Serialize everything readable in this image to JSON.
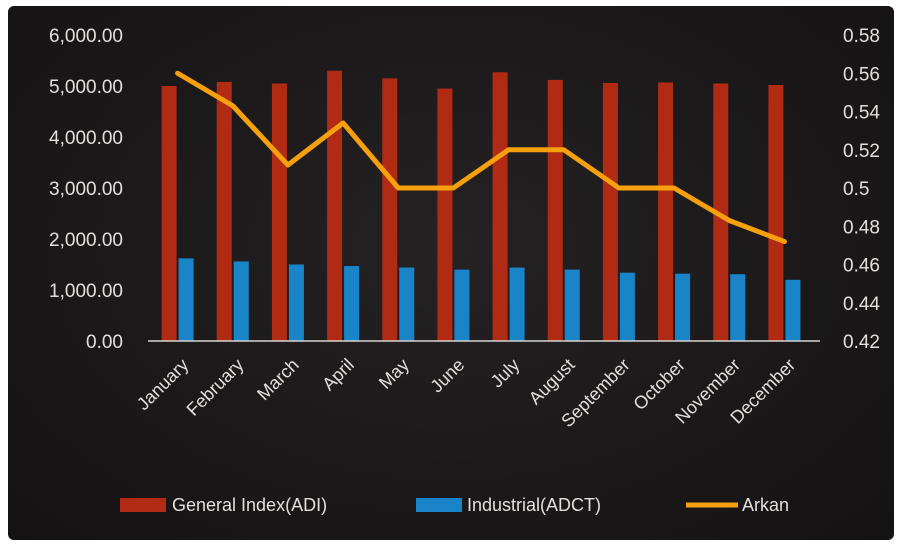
{
  "chart_data": {
    "type": "bar",
    "categories": [
      "January",
      "February",
      "March",
      "April",
      "May",
      "June",
      "July",
      "August",
      "September",
      "October",
      "November",
      "December"
    ],
    "series": [
      {
        "name": "General Index(ADI)",
        "kind": "bar",
        "axis": "left",
        "color": "#b02a14",
        "values": [
          5000,
          5080,
          5050,
          5300,
          5150,
          4950,
          5270,
          5120,
          5060,
          5070,
          5050,
          5020
        ]
      },
      {
        "name": "Industrial(ADCT)",
        "kind": "bar",
        "axis": "left",
        "color": "#1a84c8",
        "values": [
          1620,
          1560,
          1500,
          1470,
          1440,
          1400,
          1440,
          1400,
          1340,
          1320,
          1310,
          1200
        ]
      },
      {
        "name": "Arkan",
        "kind": "line",
        "axis": "right",
        "color": "#f5a00c",
        "values": [
          0.56,
          0.543,
          0.512,
          0.534,
          0.5,
          0.5,
          0.52,
          0.52,
          0.5,
          0.5,
          0.483,
          0.472
        ]
      }
    ],
    "y_left": {
      "lim": [
        0,
        6000
      ],
      "ticks": [
        "0.00",
        "1,000.00",
        "2,000.00",
        "3,000.00",
        "4,000.00",
        "5,000.00",
        "6,000.00"
      ]
    },
    "y_right": {
      "lim": [
        0.42,
        0.58
      ],
      "ticks": [
        "0.42",
        "0.44",
        "0.46",
        "0.48",
        "0.5",
        "0.52",
        "0.54",
        "0.56",
        "0.58"
      ]
    },
    "grid": false,
    "legend": {
      "position": "bottom",
      "labels": [
        "General Index(ADI)",
        "Industrial(ADCT)",
        "Arkan"
      ]
    }
  }
}
